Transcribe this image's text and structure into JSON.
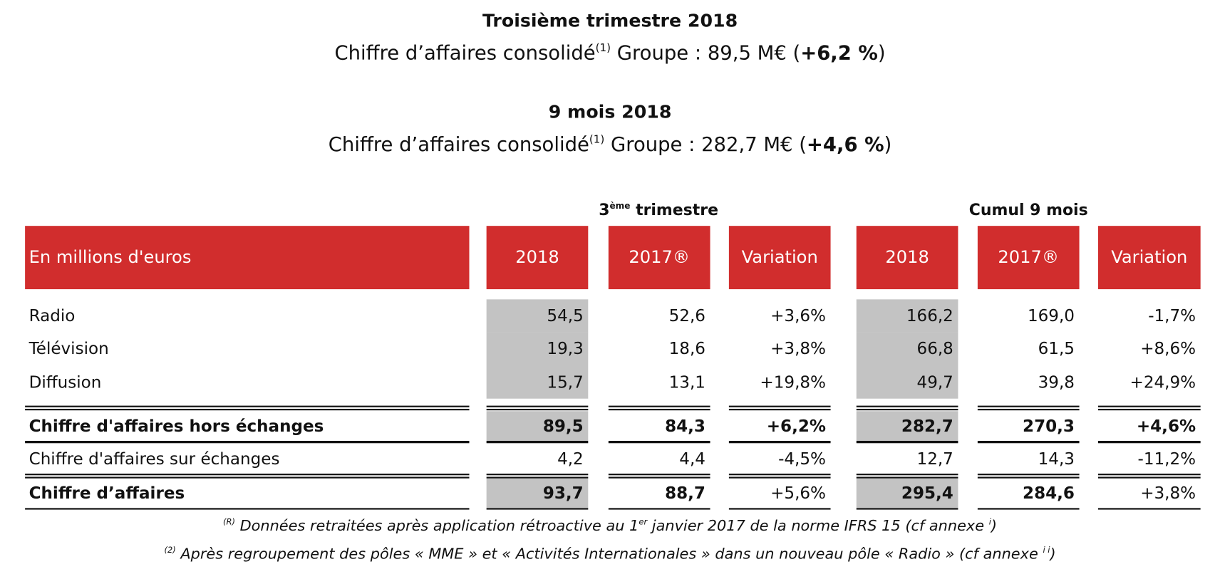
{
  "header": {
    "title_quarter": "Troisième trimestre 2018",
    "line_quarter": {
      "text": "Chiffre d’affaires consolidé",
      "note": "(1)",
      "text2": " Groupe : 89,5 M€ (",
      "growth": "+6,2 %",
      "end": ")"
    },
    "title_nine": "9 mois 2018",
    "line_nine": {
      "text": "Chiffre d’affaires consolidé",
      "note": "(1)",
      "text2": " Groupe : 282,7 M€ (",
      "growth": "+4,6 %",
      "end": ")"
    }
  },
  "table": {
    "group_headers": [
      {
        "number": "3",
        "superscript": "ème",
        "text": " trimestre"
      },
      {
        "text": "Cumul 9 mois"
      }
    ],
    "header": [
      "En millions d'euros",
      "2018",
      "2017®",
      "Variation",
      "2018",
      "2017®",
      "Variation"
    ],
    "rows": [
      [
        "Radio",
        "54,5",
        "52,6",
        "+3,6%",
        "166,2",
        "169,0",
        "-1,7%"
      ],
      [
        "Télévision",
        "19,3",
        "18,6",
        "+3,8%",
        "66,8",
        "61,5",
        "+8,6%"
      ],
      [
        "Diffusion",
        "15,7",
        "13,1",
        "+19,8%",
        "49,7",
        "39,8",
        "+24,9%"
      ],
      [
        "Chiffre d'affaires hors échanges",
        "89,5",
        "84,3",
        "+6,2%",
        "282,7",
        "270,3",
        "+4,6%"
      ],
      [
        "Chiffre d'affaires sur échanges",
        "4,2",
        "4,4",
        "-4,5%",
        "12,7",
        "14,3",
        "-11,2%"
      ],
      [
        "Chiffre d’affaires",
        "93,7",
        "88,7",
        "+5,6%",
        "295,4",
        "284,6",
        "+3,8%"
      ]
    ]
  },
  "footnotes": [
    {
      "marker": "(R)",
      "text": " Données retraitées après application rétroactive au 1",
      "superscript": "er",
      "text2": " janvier 2017 de la norme IFRS 15 (cf annexe ",
      "ref": "i",
      "end": ")"
    },
    {
      "marker": "(2)",
      "text": " Après regroupement des pôles « MME » et « Activités Internationales » dans un nouveau pôle « Radio » (cf annexe ",
      "ref": "i i",
      "end": ")"
    }
  ]
}
